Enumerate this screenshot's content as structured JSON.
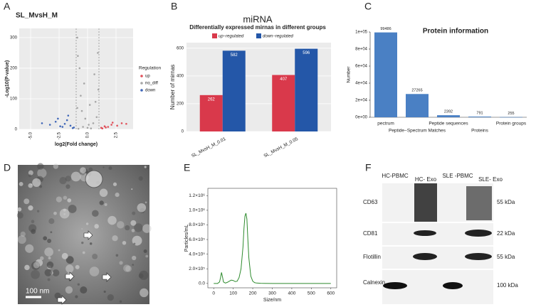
{
  "panel_labels": [
    "A",
    "B",
    "C",
    "D",
    "E",
    "F"
  ],
  "chart_data": [
    {
      "type": "scatter",
      "title": "SL_MvsH_M",
      "xlabel": "log2(Fold change)",
      "ylabel": "-Log10(P-value)",
      "legend_title": "Regulation",
      "xlim": [
        -6,
        4
      ],
      "ylim": [
        0,
        330
      ],
      "xticks": [
        {
          "value": -5,
          "label": "-5.0"
        },
        {
          "value": -2.5,
          "label": "-2.5"
        },
        {
          "value": 0,
          "label": "0.0"
        },
        {
          "value": 2.5,
          "label": "2.5"
        }
      ],
      "yticks": [
        0,
        100,
        200,
        300
      ],
      "threshold_lines": [
        -1,
        1
      ],
      "grid": true,
      "series": [
        {
          "name": "up",
          "color": "#e0505a",
          "x": [
            1.2,
            1.5,
            1.8,
            2.1,
            2.6,
            3.0,
            1.3,
            1.6,
            2.2,
            3.4
          ],
          "values": [
            5,
            10,
            8,
            15,
            12,
            20,
            3,
            6,
            22,
            18
          ]
        },
        {
          "name": "no_diff",
          "color": "#a6a6a6",
          "x": [
            -0.8,
            -0.5,
            -0.3,
            0,
            0.2,
            0.5,
            0.8,
            -0.9,
            0.9,
            -0.6,
            0.3,
            -0.7,
            0.7,
            -0.4,
            0.6,
            -0.2,
            0.1,
            -0.9,
            0.95,
            -0.85
          ],
          "values": [
            2,
            60,
            150,
            5,
            80,
            20,
            40,
            300,
            250,
            110,
            3,
            200,
            90,
            8,
            180,
            35,
            15,
            70,
            130,
            240
          ]
        },
        {
          "name": "down",
          "color": "#3f66b8",
          "x": [
            -1.2,
            -1.5,
            -2,
            -2.4,
            -2.8,
            -3.3,
            -1.8,
            -2.2,
            -1.3,
            -4.0,
            -1.7,
            -2.6
          ],
          "values": [
            6,
            12,
            18,
            10,
            25,
            15,
            30,
            8,
            4,
            20,
            45,
            35
          ]
        }
      ]
    },
    {
      "type": "bar",
      "title": "miRNA",
      "subtitle": "Differentially expressed mirnas in different groups",
      "ylabel": "Number of mirnas",
      "categories": [
        "SL_MvsH_M_0.01",
        "SL_MvsH_M_0.05"
      ],
      "ylim": [
        0,
        640
      ],
      "yticks": [
        0,
        200,
        400,
        600
      ],
      "grid": true,
      "series": [
        {
          "name": "up−regulated",
          "color": "#d9394b",
          "values": [
            262,
            407
          ]
        },
        {
          "name": "down−regulated",
          "color": "#2457a8",
          "values": [
            582,
            596
          ]
        }
      ]
    },
    {
      "type": "bar",
      "title": "Protein information",
      "ylabel": "Number",
      "categories": [
        "pectrum",
        "Peptide−Spectrum Matches",
        "Peptide sequences",
        "Proteins",
        "Protein groups"
      ],
      "values": [
        99486,
        27265,
        2392,
        791,
        255
      ],
      "color": "#4a80c4",
      "ylim": [
        0,
        100000
      ],
      "yticks": [
        {
          "value": 0,
          "label": "0e+00"
        },
        {
          "value": 20000,
          "label": "2e+04"
        },
        {
          "value": 40000,
          "label": "4e+04"
        },
        {
          "value": 60000,
          "label": "6e+04"
        },
        {
          "value": 80000,
          "label": "8e+04"
        },
        {
          "value": 100000,
          "label": "1e+05"
        }
      ]
    },
    {
      "type": "line",
      "xlabel": "Size/nm",
      "ylabel": "Particles/mL",
      "xlim": [
        -30,
        630
      ],
      "ylim": [
        -60000,
        1300000
      ],
      "xticks": [
        0,
        100,
        200,
        300,
        400,
        500,
        600
      ],
      "yticks": [
        {
          "value": 0,
          "label": "0.0"
        },
        {
          "value": 200000,
          "label": "2.0×10⁵"
        },
        {
          "value": 400000,
          "label": "4.0×10⁵"
        },
        {
          "value": 600000,
          "label": "6.0×10⁵"
        },
        {
          "value": 800000,
          "label": "8.0×10⁵"
        },
        {
          "value": 1000000,
          "label": "1.0×10⁶"
        },
        {
          "value": 1200000,
          "label": "1.2×10⁶"
        }
      ],
      "series": [
        {
          "name": "Particles",
          "color": "#2e8b2e",
          "x": [
            0,
            20,
            30,
            35,
            40,
            45,
            50,
            60,
            70,
            80,
            90,
            100,
            110,
            120,
            130,
            140,
            150,
            155,
            160,
            165,
            170,
            175,
            180,
            190,
            200,
            210,
            220,
            240,
            260,
            300,
            400,
            500,
            600
          ],
          "values": [
            0,
            0,
            20000,
            80000,
            150000,
            90000,
            20000,
            5000,
            15000,
            30000,
            45000,
            40000,
            25000,
            30000,
            80000,
            200000,
            500000,
            750000,
            920000,
            960000,
            880000,
            600000,
            350000,
            100000,
            30000,
            10000,
            5000,
            2000,
            1000,
            0,
            0,
            0,
            0
          ]
        }
      ]
    }
  ],
  "tem_image": {
    "scale_bar": "100 nm"
  },
  "western_blot": {
    "columns": [
      "HC-PBMC",
      "HC- Exo",
      "SLE -PBMC",
      "SLE- Exo"
    ],
    "rows": [
      {
        "protein": "CD63",
        "size": "55 kDa"
      },
      {
        "protein": "CD81",
        "size": "22 kDa"
      },
      {
        "protein": "Flotillin",
        "size": "55 kDa"
      },
      {
        "protein": "Calnexin",
        "size": "100 kDa"
      }
    ]
  }
}
